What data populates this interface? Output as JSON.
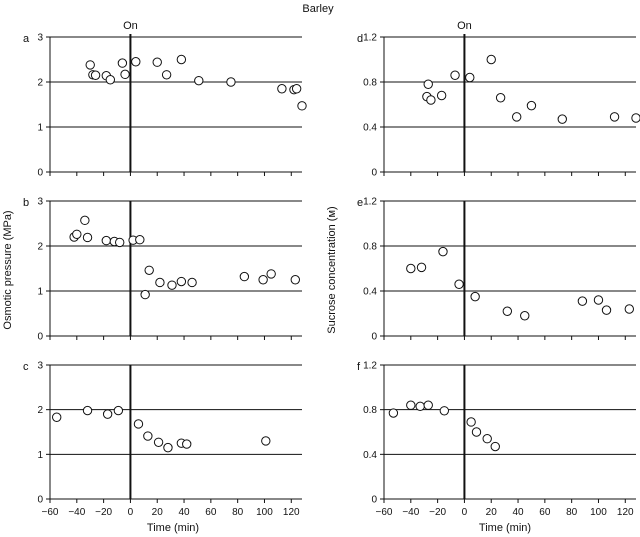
{
  "figure_title": "Barley",
  "on_marker_label": "On",
  "left_ylabel": "Osmotic pressure (MPa)",
  "right_ylabel": "Sucrose concentration (м)",
  "xlabel": "Time (min)",
  "chart_data": [
    {
      "id": "a",
      "type": "scatter",
      "column": "left",
      "ylim": [
        0,
        3
      ],
      "yticks": [
        0,
        1,
        2,
        3
      ],
      "xlim": [
        -60,
        128
      ],
      "xticks": [
        -60,
        -40,
        -20,
        0,
        20,
        40,
        60,
        80,
        100,
        120
      ],
      "show_xtick_labels": false,
      "grid": "horizontal",
      "points": [
        [
          -30,
          2.38
        ],
        [
          -28,
          2.16
        ],
        [
          -26,
          2.15
        ],
        [
          -18,
          2.14
        ],
        [
          -15,
          2.05
        ],
        [
          -6,
          2.42
        ],
        [
          -4,
          2.17
        ],
        [
          4,
          2.45
        ],
        [
          20,
          2.44
        ],
        [
          27,
          2.16
        ],
        [
          38,
          2.5
        ],
        [
          51,
          2.03
        ],
        [
          75,
          2.0
        ],
        [
          113,
          1.85
        ],
        [
          122,
          1.83
        ],
        [
          124,
          1.85
        ],
        [
          128,
          1.47
        ]
      ]
    },
    {
      "id": "b",
      "type": "scatter",
      "column": "left",
      "ylim": [
        0,
        3
      ],
      "yticks": [
        0,
        1,
        2,
        3
      ],
      "xlim": [
        -60,
        128
      ],
      "xticks": [
        -60,
        -40,
        -20,
        0,
        20,
        40,
        60,
        80,
        100,
        120
      ],
      "show_xtick_labels": false,
      "grid": "horizontal",
      "points": [
        [
          -42,
          2.2
        ],
        [
          -40,
          2.26
        ],
        [
          -34,
          2.57
        ],
        [
          -32,
          2.19
        ],
        [
          -18,
          2.12
        ],
        [
          -12,
          2.1
        ],
        [
          -8,
          2.08
        ],
        [
          2,
          2.13
        ],
        [
          7,
          2.14
        ],
        [
          11,
          0.92
        ],
        [
          14,
          1.46
        ],
        [
          22,
          1.19
        ],
        [
          31,
          1.13
        ],
        [
          38,
          1.21
        ],
        [
          46,
          1.19
        ],
        [
          85,
          1.32
        ],
        [
          99,
          1.25
        ],
        [
          105,
          1.38
        ],
        [
          123,
          1.25
        ]
      ]
    },
    {
      "id": "c",
      "type": "scatter",
      "column": "left",
      "ylim": [
        0,
        3
      ],
      "yticks": [
        0,
        1,
        2,
        3
      ],
      "xlim": [
        -60,
        128
      ],
      "xticks": [
        -60,
        -40,
        -20,
        0,
        20,
        40,
        60,
        80,
        100,
        120
      ],
      "show_xtick_labels": true,
      "grid": "horizontal",
      "points": [
        [
          -55,
          1.83
        ],
        [
          -32,
          1.98
        ],
        [
          -17,
          1.9
        ],
        [
          -9,
          1.98
        ],
        [
          6,
          1.68
        ],
        [
          13,
          1.41
        ],
        [
          21,
          1.27
        ],
        [
          28,
          1.15
        ],
        [
          38,
          1.25
        ],
        [
          42,
          1.23
        ],
        [
          101,
          1.3
        ]
      ]
    },
    {
      "id": "d",
      "type": "scatter",
      "column": "right",
      "ylim": [
        0,
        1.2
      ],
      "yticks": [
        0,
        0.4,
        0.8,
        1.2
      ],
      "xlim": [
        -60,
        128
      ],
      "xticks": [
        -60,
        -40,
        -20,
        0,
        20,
        40,
        60,
        80,
        100,
        120
      ],
      "show_xtick_labels": false,
      "grid": "horizontal",
      "points": [
        [
          -28,
          0.67
        ],
        [
          -27,
          0.78
        ],
        [
          -25,
          0.64
        ],
        [
          -17,
          0.68
        ],
        [
          -7,
          0.86
        ],
        [
          4,
          0.84
        ],
        [
          20,
          1.0
        ],
        [
          27,
          0.66
        ],
        [
          39,
          0.49
        ],
        [
          50,
          0.59
        ],
        [
          73,
          0.47
        ],
        [
          112,
          0.49
        ],
        [
          128,
          0.48
        ]
      ]
    },
    {
      "id": "e",
      "type": "scatter",
      "column": "right",
      "ylim": [
        0,
        1.2
      ],
      "yticks": [
        0,
        0.4,
        0.8,
        1.2
      ],
      "xlim": [
        -60,
        128
      ],
      "xticks": [
        -60,
        -40,
        -20,
        0,
        20,
        40,
        60,
        80,
        100,
        120
      ],
      "show_xtick_labels": false,
      "grid": "horizontal",
      "points": [
        [
          -40,
          0.6
        ],
        [
          -32,
          0.61
        ],
        [
          -16,
          0.75
        ],
        [
          -4,
          0.46
        ],
        [
          8,
          0.35
        ],
        [
          32,
          0.22
        ],
        [
          45,
          0.18
        ],
        [
          88,
          0.31
        ],
        [
          100,
          0.32
        ],
        [
          106,
          0.23
        ],
        [
          123,
          0.24
        ]
      ]
    },
    {
      "id": "f",
      "type": "scatter",
      "column": "right",
      "ylim": [
        0,
        1.2
      ],
      "yticks": [
        0,
        0.4,
        0.8,
        1.2
      ],
      "xlim": [
        -60,
        128
      ],
      "xticks": [
        -60,
        -40,
        -20,
        0,
        20,
        40,
        60,
        80,
        100,
        120
      ],
      "show_xtick_labels": true,
      "grid": "horizontal",
      "points": [
        [
          -53,
          0.77
        ],
        [
          -40,
          0.84
        ],
        [
          -33,
          0.83
        ],
        [
          -27,
          0.84
        ],
        [
          -15,
          0.79
        ],
        [
          5,
          0.69
        ],
        [
          9,
          0.6
        ],
        [
          17,
          0.54
        ],
        [
          23,
          0.47
        ]
      ]
    }
  ]
}
